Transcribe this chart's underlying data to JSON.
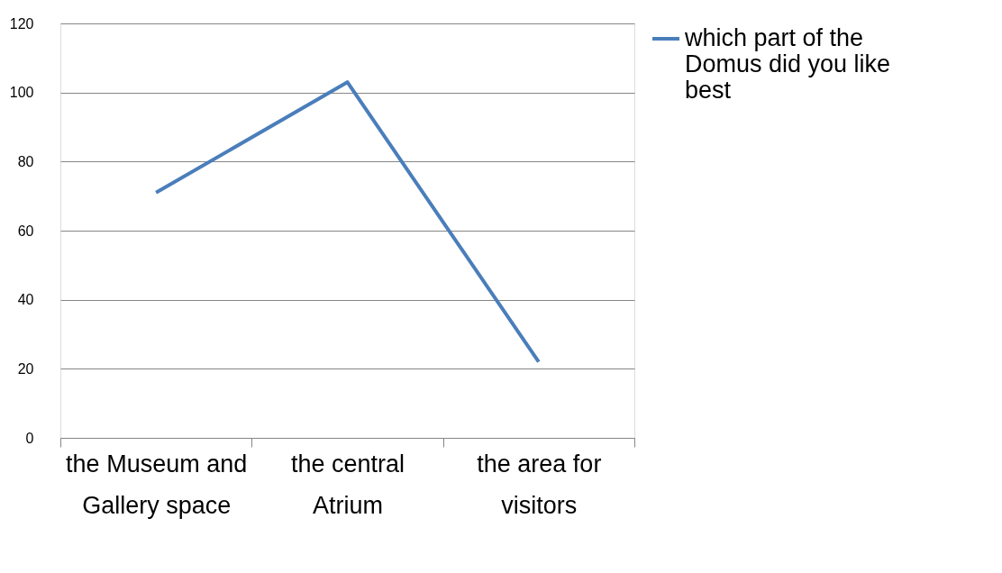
{
  "chart_data": {
    "type": "line",
    "categories": [
      "the Museum and Gallery space",
      "the central Atrium",
      "the area for visitors"
    ],
    "series": [
      {
        "name": "which part of the Domus did you like best",
        "color": "#4a7ebb",
        "values": [
          71,
          103,
          22
        ]
      }
    ],
    "ylim": [
      0,
      120
    ],
    "yticks": [
      0,
      20,
      40,
      60,
      80,
      100,
      120
    ],
    "grid": "y",
    "legend": "right",
    "marker": "none",
    "line_style": "solid"
  }
}
